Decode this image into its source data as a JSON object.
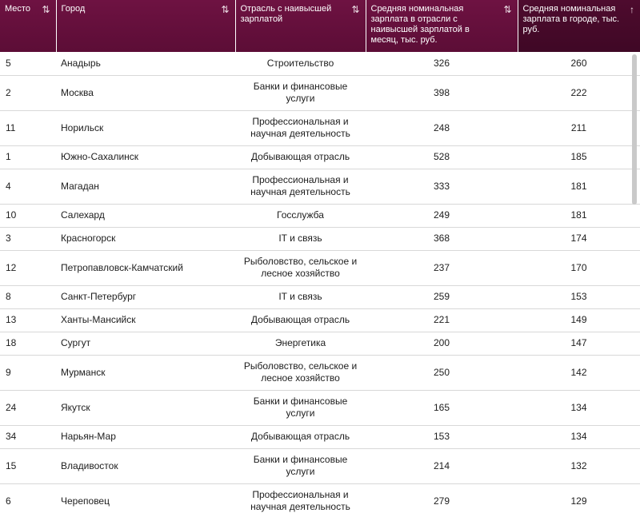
{
  "table": {
    "headers": [
      {
        "label": "Место",
        "sort": "⇅"
      },
      {
        "label": "Город",
        "sort": "⇅"
      },
      {
        "label": "Отрасль с наивысшей зарплатой",
        "sort": "⇅"
      },
      {
        "label": "Средняя номинальная зарплата в отрасли с наивысшей зарплатой в месяц, тыс. руб.",
        "sort": "⇅"
      },
      {
        "label": "Средняя номинальная зарплата в городе, тыс. руб.",
        "sort": "↑"
      }
    ],
    "rows": [
      {
        "rank": "5",
        "city": "Анадырь",
        "sector": "Строительство",
        "sector_salary": "326",
        "city_salary": "260",
        "tall": false
      },
      {
        "rank": "2",
        "city": "Москва",
        "sector": "Банки и финансовые услуги",
        "sector_salary": "398",
        "city_salary": "222",
        "tall": true
      },
      {
        "rank": "11",
        "city": "Норильск",
        "sector": "Профессиональная и научная деятельность",
        "sector_salary": "248",
        "city_salary": "211",
        "tall": true
      },
      {
        "rank": "1",
        "city": "Южно-Сахалинск",
        "sector": "Добывающая отрасль",
        "sector_salary": "528",
        "city_salary": "185",
        "tall": false
      },
      {
        "rank": "4",
        "city": "Магадан",
        "sector": "Профессиональная и научная деятельность",
        "sector_salary": "333",
        "city_salary": "181",
        "tall": true
      },
      {
        "rank": "10",
        "city": "Салехард",
        "sector": "Госслужба",
        "sector_salary": "249",
        "city_salary": "181",
        "tall": false
      },
      {
        "rank": "3",
        "city": "Красногорск",
        "sector": "IT и связь",
        "sector_salary": "368",
        "city_salary": "174",
        "tall": false
      },
      {
        "rank": "12",
        "city": "Петропавловск-Камчатский",
        "sector": "Рыболовство, сельское и лесное хозяйство",
        "sector_salary": "237",
        "city_salary": "170",
        "tall": true
      },
      {
        "rank": "8",
        "city": "Санкт-Петербург",
        "sector": "IT и связь",
        "sector_salary": "259",
        "city_salary": "153",
        "tall": false
      },
      {
        "rank": "13",
        "city": "Ханты-Мансийск",
        "sector": "Добывающая отрасль",
        "sector_salary": "221",
        "city_salary": "149",
        "tall": false
      },
      {
        "rank": "18",
        "city": "Сургут",
        "sector": "Энергетика",
        "sector_salary": "200",
        "city_salary": "147",
        "tall": false
      },
      {
        "rank": "9",
        "city": "Мурманск",
        "sector": "Рыболовство, сельское и лесное хозяйство",
        "sector_salary": "250",
        "city_salary": "142",
        "tall": true
      },
      {
        "rank": "24",
        "city": "Якутск",
        "sector": "Банки и финансовые услуги",
        "sector_salary": "165",
        "city_salary": "134",
        "tall": true
      },
      {
        "rank": "34",
        "city": "Нарьян-Мар",
        "sector": "Добывающая отрасль",
        "sector_salary": "153",
        "city_salary": "134",
        "tall": false
      },
      {
        "rank": "15",
        "city": "Владивосток",
        "sector": "Банки и финансовые услуги",
        "sector_salary": "214",
        "city_salary": "132",
        "tall": true
      },
      {
        "rank": "6",
        "city": "Череповец",
        "sector": "Профессиональная и научная деятельность",
        "sector_salary": "279",
        "city_salary": "129",
        "tall": true
      }
    ]
  }
}
